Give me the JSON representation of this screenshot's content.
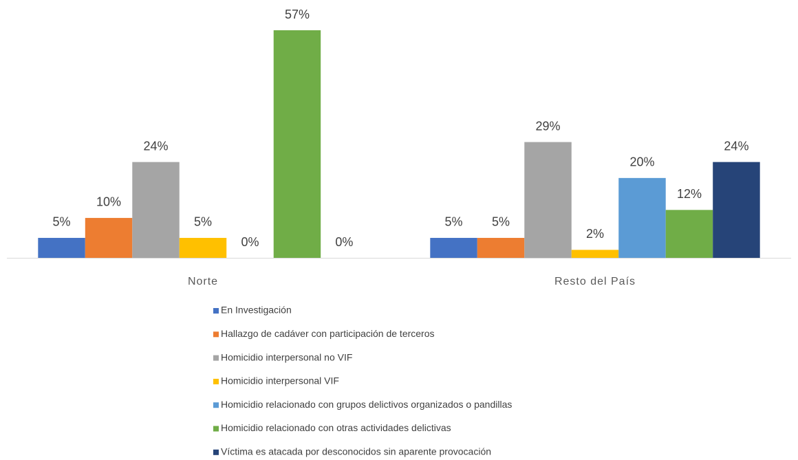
{
  "chart_data": {
    "type": "bar",
    "categories": [
      "Norte",
      "Resto del País"
    ],
    "series": [
      {
        "name": "En Investigación",
        "color": "#4472c4",
        "values": [
          5,
          5
        ],
        "value_labels": [
          "5%",
          "5%"
        ]
      },
      {
        "name": "Hallazgo de cadáver con participación de terceros",
        "color": "#ed7d31",
        "values": [
          10,
          5
        ],
        "value_labels": [
          "10%",
          "5%"
        ]
      },
      {
        "name": "Homicidio interpersonal no VIF",
        "color": "#a5a5a5",
        "values": [
          24,
          29
        ],
        "value_labels": [
          "24%",
          "29%"
        ]
      },
      {
        "name": "Homicidio interpersonal VIF",
        "color": "#ffc000",
        "values": [
          5,
          2
        ],
        "value_labels": [
          "5%",
          "2%"
        ]
      },
      {
        "name": "Homicidio relacionado con grupos delictivos organizados o pandillas",
        "color": "#5b9bd5",
        "values": [
          0,
          20
        ],
        "value_labels": [
          "0%",
          "20%"
        ]
      },
      {
        "name": "Homicidio relacionado con otras actividades delictivas",
        "color": "#70ad47",
        "values": [
          57,
          12
        ],
        "value_labels": [
          "57%",
          "12%"
        ]
      },
      {
        "name": "Víctima es atacada por desconocidos sin aparente provocación",
        "color": "#264478",
        "values": [
          0,
          24
        ],
        "value_labels": [
          "0%",
          "24%"
        ]
      }
    ],
    "legend": "bottom"
  }
}
